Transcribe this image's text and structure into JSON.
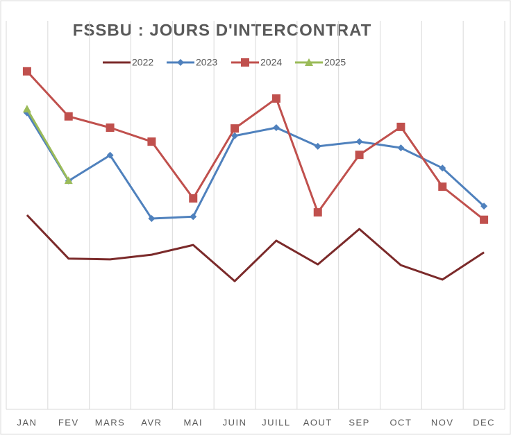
{
  "chart_data": {
    "type": "line",
    "title": "FSSBU : JOURS D'INTERCONTRAT",
    "categories": [
      "JAN",
      "FEV",
      "MARS",
      "AVR",
      "MAI",
      "JUIN",
      "JUILL",
      "AOUT",
      "SEP",
      "OCT",
      "NOV",
      "DEC"
    ],
    "ylim": [
      0,
      100
    ],
    "series": [
      {
        "name": "2022",
        "color": "#7b2a2a",
        "marker": "none",
        "values": [
          50,
          38.8,
          38.6,
          39.8,
          42.3,
          33,
          43.4,
          37.3,
          46.4,
          37.1,
          33.4,
          40.4
        ]
      },
      {
        "name": "2023",
        "color": "#4f81bd",
        "marker": "diamond",
        "values": [
          76.3,
          58.8,
          65.4,
          49.1,
          49.6,
          70.4,
          72.5,
          67.7,
          68.9,
          67.3,
          62.1,
          52.3
        ]
      },
      {
        "name": "2024",
        "color": "#c0504d",
        "marker": "square",
        "values": [
          87,
          75.4,
          72.5,
          68.9,
          54.3,
          72.3,
          80,
          50.7,
          65.5,
          72.7,
          57.3,
          48.8
        ]
      },
      {
        "name": "2025",
        "color": "#9bbb59",
        "marker": "triangle",
        "values": [
          77.3,
          58.9,
          null,
          null,
          null,
          null,
          null,
          null,
          null,
          null,
          null,
          null
        ]
      }
    ],
    "legend": "top",
    "grid": true
  }
}
